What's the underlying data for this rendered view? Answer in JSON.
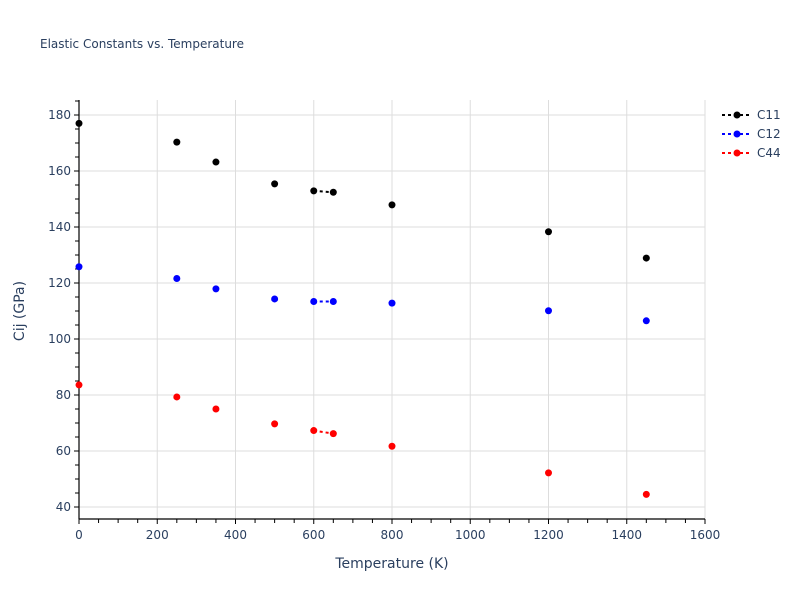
{
  "chart_data": {
    "type": "scatter",
    "title": "Elastic Constants vs. Temperature",
    "xlabel": "Temperature (K)",
    "ylabel": "Cij (GPa)",
    "xlim": [
      0,
      1600
    ],
    "ylim": [
      36,
      185
    ],
    "x_ticks": [
      0,
      200,
      400,
      600,
      800,
      1000,
      1200,
      1400,
      1600
    ],
    "y_ticks": [
      40,
      60,
      80,
      100,
      120,
      140,
      160,
      180
    ],
    "grid": true,
    "legend_position": "top-right-outside",
    "series": [
      {
        "name": "C11",
        "color": "#000000",
        "x": [
          0,
          250,
          350,
          500,
          600,
          650,
          800,
          1200,
          1450
        ],
        "values": [
          177.0,
          170.3,
          163.2,
          155.4,
          152.9,
          152.4,
          147.9,
          138.3,
          128.9
        ],
        "line_segment": [
          [
            600,
            152.9
          ],
          [
            650,
            152.4
          ]
        ]
      },
      {
        "name": "C12",
        "color": "#0000ff",
        "x": [
          0,
          250,
          350,
          500,
          600,
          650,
          800,
          1200,
          1450
        ],
        "values": [
          125.8,
          121.6,
          117.9,
          114.3,
          113.4,
          113.4,
          112.8,
          110.1,
          106.5
        ],
        "line_segment": [
          [
            600,
            113.4
          ],
          [
            650,
            113.4
          ]
        ]
      },
      {
        "name": "C44",
        "color": "#ff0000",
        "x": [
          0,
          250,
          350,
          500,
          600,
          650,
          800,
          1200,
          1450
        ],
        "values": [
          83.6,
          79.3,
          75.0,
          69.7,
          67.3,
          66.2,
          61.7,
          52.2,
          44.5
        ],
        "line_segment": [
          [
            600,
            67.3
          ],
          [
            650,
            66.2
          ]
        ]
      }
    ]
  },
  "legend": {
    "items": [
      {
        "label": "C11",
        "color": "#000000"
      },
      {
        "label": "C12",
        "color": "#0000ff"
      },
      {
        "label": "C44",
        "color": "#ff0000"
      }
    ]
  },
  "colors": {
    "grid": "#dddddd",
    "axis": "#000000",
    "text": "#2a3f5f"
  }
}
